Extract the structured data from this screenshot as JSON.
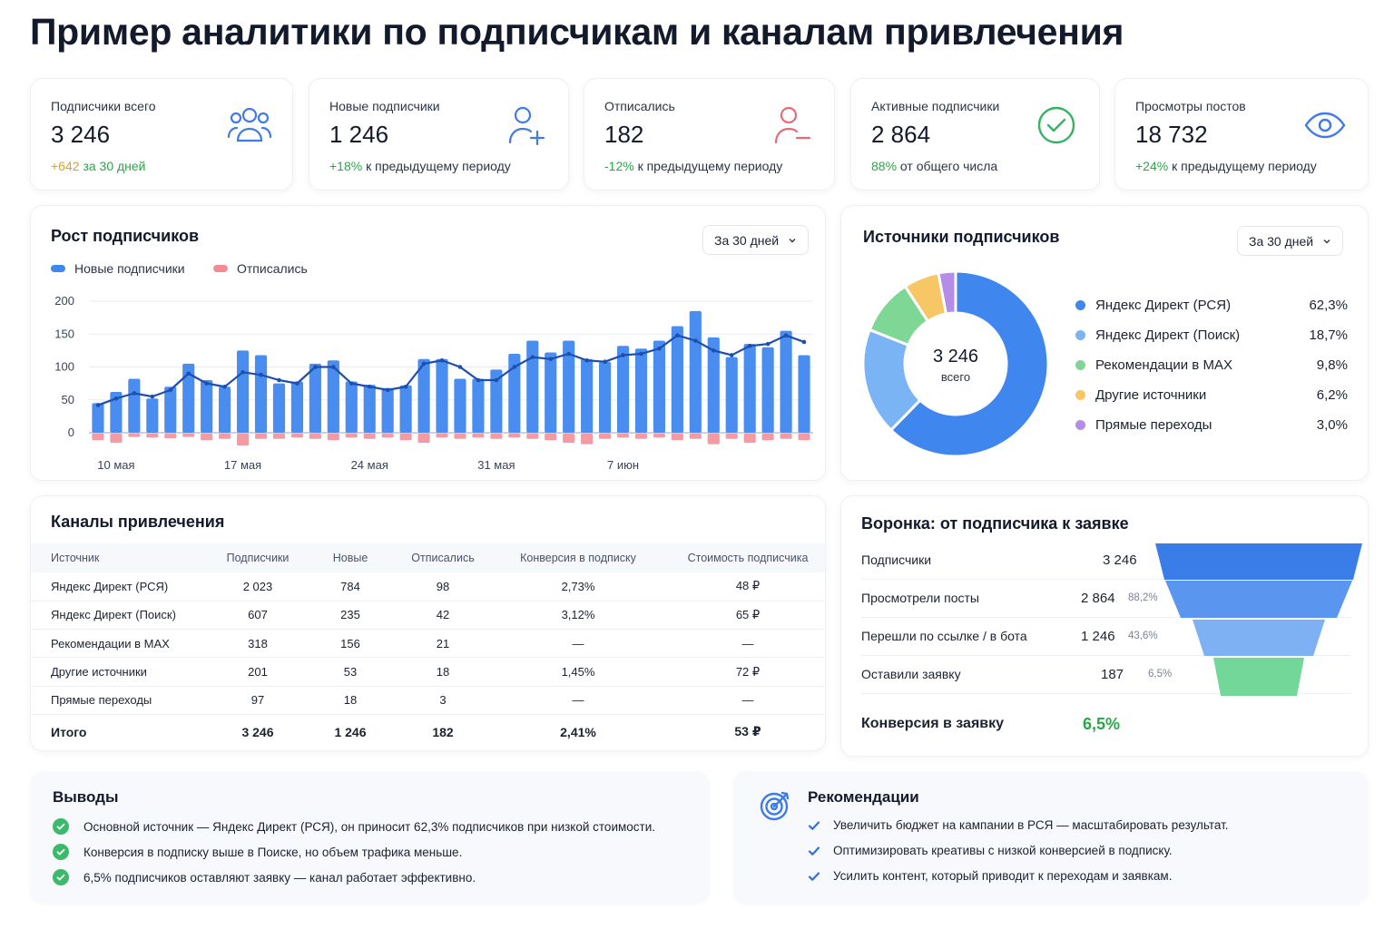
{
  "page_title": "Пример аналитики по подписчикам и каналам привлечения",
  "colors": {
    "blue": "#3f86ee",
    "red": "#ef8c94",
    "green": "#27a844",
    "line": "#1d4fb0"
  },
  "kpis": [
    {
      "label": "Подписчики всего",
      "value": "3 246",
      "delta": "+642",
      "note": "за 30 дней",
      "icon": "users-group-icon"
    },
    {
      "label": "Новые подписчики",
      "value": "1 246",
      "delta": "+18%",
      "note": "к предыдущему периоду",
      "icon": "user-plus-icon"
    },
    {
      "label": "Отписались",
      "value": "182",
      "delta": "-12%",
      "note": "к предыдущему периоду",
      "icon": "user-minus-icon"
    },
    {
      "label": "Активные подписчики",
      "value": "2 864",
      "delta": "88%",
      "note": "от общего числа",
      "icon": "check-circle-icon"
    },
    {
      "label": "Просмотры постов",
      "value": "18 732",
      "delta": "+24%",
      "note": "к предыдущему периоду",
      "icon": "eye-icon"
    }
  ],
  "growth": {
    "title": "Рост подписчиков",
    "period": "За 30 дней",
    "legend_new": "Новые подписчики",
    "legend_unsub": "Отписались"
  },
  "chart_data": {
    "type": "bar",
    "yticks": [
      0,
      50,
      100,
      150,
      200
    ],
    "ylim": [
      -15,
      200
    ],
    "xtick_labels": [
      "10 мая",
      "17 мая",
      "24 мая",
      "31 мая",
      "7 июн"
    ],
    "xtick_index": [
      1,
      8,
      15,
      22,
      29
    ],
    "series": [
      {
        "name": "Новые подписчики",
        "type": "bar",
        "values": [
          45,
          62,
          82,
          52,
          70,
          105,
          80,
          70,
          125,
          118,
          75,
          78,
          105,
          110,
          78,
          73,
          68,
          72,
          112,
          112,
          82,
          82,
          96,
          120,
          140,
          122,
          140,
          112,
          108,
          132,
          128,
          140,
          162,
          185,
          145,
          115,
          135,
          130,
          155,
          118
        ]
      },
      {
        "name": "Отписались",
        "type": "bar",
        "values": [
          -10,
          -14,
          -5,
          -6,
          -7,
          -5,
          -10,
          -8,
          -18,
          -8,
          -8,
          -6,
          -8,
          -10,
          -6,
          -8,
          -6,
          -10,
          -14,
          -6,
          -8,
          -6,
          -8,
          -6,
          -8,
          -10,
          -14,
          -16,
          -8,
          -6,
          -8,
          -6,
          -10,
          -8,
          -16,
          -8,
          -14,
          -10,
          -8,
          -10
        ]
      },
      {
        "type": "line",
        "values": [
          42,
          52,
          60,
          55,
          65,
          90,
          75,
          70,
          92,
          88,
          80,
          75,
          100,
          100,
          75,
          70,
          65,
          70,
          105,
          110,
          100,
          80,
          80,
          100,
          115,
          112,
          120,
          110,
          108,
          118,
          120,
          128,
          148,
          140,
          125,
          118,
          132,
          135,
          148,
          138
        ]
      }
    ]
  },
  "sources": {
    "title": "Источники подписчиков",
    "period": "За 30 дней",
    "total": "3 246",
    "total_label": "всего",
    "items": [
      {
        "name": "Яндекс Директ (РСЯ)",
        "pct": "62,3%",
        "value": 62.3,
        "color": "#3f86ee"
      },
      {
        "name": "Яндекс Директ (Поиск)",
        "pct": "18,7%",
        "value": 18.7,
        "color": "#7ab4f5"
      },
      {
        "name": "Рекомендации в MAX",
        "pct": "9,8%",
        "value": 9.8,
        "color": "#7fd796"
      },
      {
        "name": "Другие источники",
        "pct": "6,2%",
        "value": 6.2,
        "color": "#f7c765"
      },
      {
        "name": "Прямые переходы",
        "pct": "3,0%",
        "value": 3.0,
        "color": "#b58ce8"
      }
    ]
  },
  "channels": {
    "title": "Каналы привлечения",
    "headers": [
      "Источник",
      "Подписчики",
      "Новые",
      "Отписались",
      "Конверсия в подписку",
      "Стоимость подписчика"
    ],
    "rows": [
      [
        "Яндекс Директ (РСЯ)",
        "2 023",
        "784",
        "98",
        "2,73%",
        "48 ₽"
      ],
      [
        "Яндекс Директ (Поиск)",
        "607",
        "235",
        "42",
        "3,12%",
        "65 ₽"
      ],
      [
        "Рекомендации в MAX",
        "318",
        "156",
        "21",
        "—",
        "—"
      ],
      [
        "Другие источники",
        "201",
        "53",
        "18",
        "1,45%",
        "72 ₽"
      ],
      [
        "Прямые переходы",
        "97",
        "18",
        "3",
        "—",
        "—"
      ]
    ],
    "total": [
      "Итого",
      "3 246",
      "1 246",
      "182",
      "2,41%",
      "53 ₽"
    ]
  },
  "funnel": {
    "title": "Воронка: от подписчика к заявке",
    "rows": [
      {
        "name": "Подписчики",
        "value": "3 246",
        "pct": ""
      },
      {
        "name": "Просмотрели посты",
        "value": "2 864",
        "pct": "88,2%"
      },
      {
        "name": "Перешли по ссылке / в бота",
        "value": "1 246",
        "pct": "43,6%"
      },
      {
        "name": "Оставили заявку",
        "value": "187",
        "pct": "6,5%"
      }
    ],
    "conversion_label": "Конверсия в заявку",
    "conversion_value": "6,5%"
  },
  "conclusions": {
    "title": "Выводы",
    "items": [
      "Основной источник — Яндекс Директ (РСЯ), он приносит 62,3% подписчиков при низкой стоимости.",
      "Конверсия в подписку выше в Поиске, но объем трафика меньше.",
      "6,5% подписчиков оставляют заявку — канал работает эффективно."
    ]
  },
  "recommendations": {
    "title": "Рекомендации",
    "icon": "target-icon",
    "items": [
      "Увеличить бюджет на кампании в РСЯ — масштабировать результат.",
      "Оптимизировать креативы с низкой конверсией в подписку.",
      "Усилить контент, который приводит к переходам и заявкам."
    ]
  }
}
